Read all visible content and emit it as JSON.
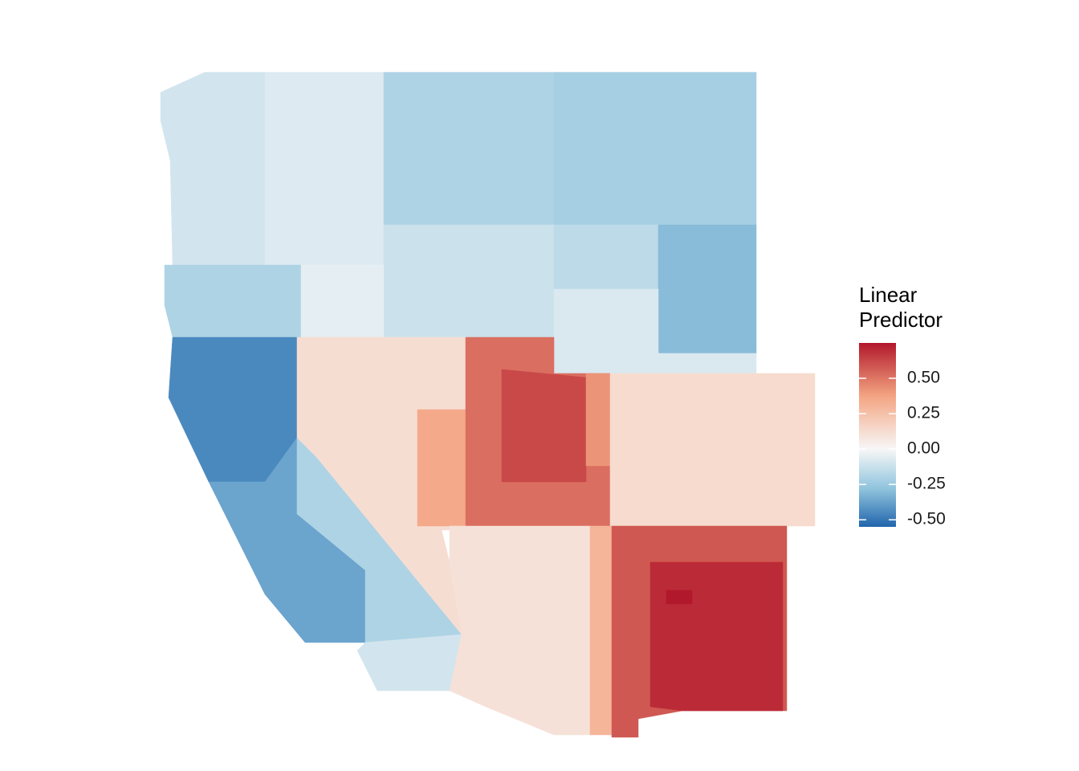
{
  "legend": {
    "title": [
      "Linear",
      "Predictor"
    ],
    "lim": [
      -0.55,
      0.75
    ],
    "ticks": [
      {
        "value": 0.5,
        "label": "0.50"
      },
      {
        "value": 0.25,
        "label": "0.25"
      },
      {
        "value": 0,
        "label": "0.00"
      },
      {
        "value": -0.25,
        "label": "-0.25"
      },
      {
        "value": -0.5,
        "label": "-0.50"
      }
    ],
    "colors": [
      "#2166ac",
      "#92c5de",
      "#f7f7f7",
      "#f4a582",
      "#b2182b"
    ]
  },
  "map": {
    "values": [
      -0.1,
      -0.07,
      -0.2,
      -0.22,
      -0.12,
      -0.16,
      -0.3,
      -0.2,
      -0.05,
      -0.08,
      -0.45,
      -0.37,
      -0.2,
      -0.1,
      0.12,
      0.35,
      0.52,
      0.62,
      0.42,
      0.13,
      0.1,
      0.3,
      0.58,
      0.7,
      0.75
    ]
  }
}
